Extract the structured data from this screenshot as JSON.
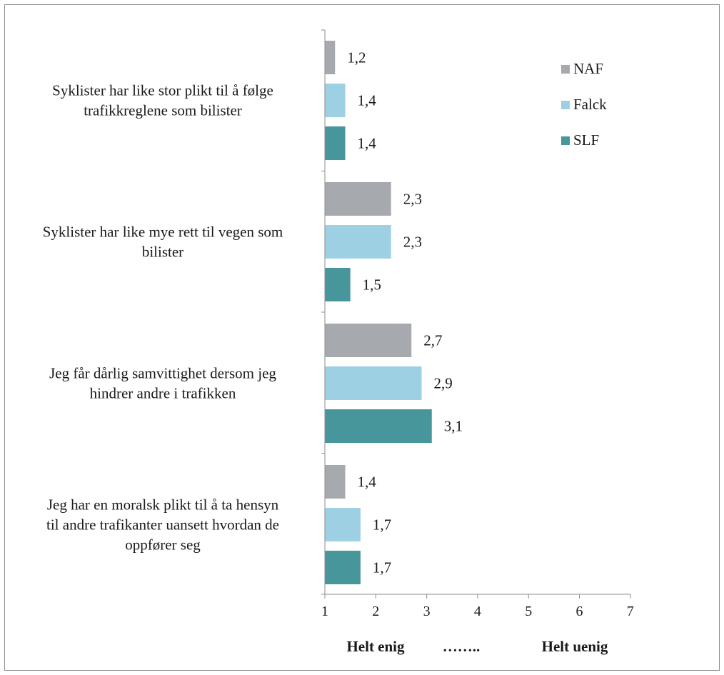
{
  "chart_data": {
    "type": "bar",
    "orientation": "horizontal",
    "categories": [
      [
        "Syklister har like stor plikt til å følge",
        "trafikkreglene som bilister"
      ],
      [
        "Syklister har like mye rett til vegen som",
        "bilister"
      ],
      [
        "Jeg får dårlig samvittighet dersom jeg",
        "hindrer andre i trafikken"
      ],
      [
        "Jeg har en moralsk plikt til å ta hensyn",
        "til andre trafikanter uansett hvordan de",
        "oppfører seg"
      ]
    ],
    "series": [
      {
        "name": "NAF",
        "color": "#a6a9ad",
        "values": [
          1.2,
          2.3,
          2.7,
          1.4
        ],
        "labels": [
          "1,2",
          "2,3",
          "2,7",
          "1,4"
        ]
      },
      {
        "name": "Falck",
        "color": "#9dd0e2",
        "values": [
          1.4,
          2.3,
          2.9,
          1.7
        ],
        "labels": [
          "1,4",
          "2,3",
          "2,9",
          "1,7"
        ]
      },
      {
        "name": "SLF",
        "color": "#47969b",
        "values": [
          1.4,
          1.5,
          3.1,
          1.7
        ],
        "labels": [
          "1,4",
          "1,5",
          "3,1",
          "1,7"
        ]
      }
    ],
    "xlim": [
      1,
      7
    ],
    "xticks": [
      "1",
      "2",
      "3",
      "4",
      "5",
      "6",
      "7"
    ],
    "xlabel": {
      "left": "Helt enig",
      "middle": "……..",
      "right": "Helt uenig"
    },
    "legend_position": "top-right",
    "grid": false
  }
}
